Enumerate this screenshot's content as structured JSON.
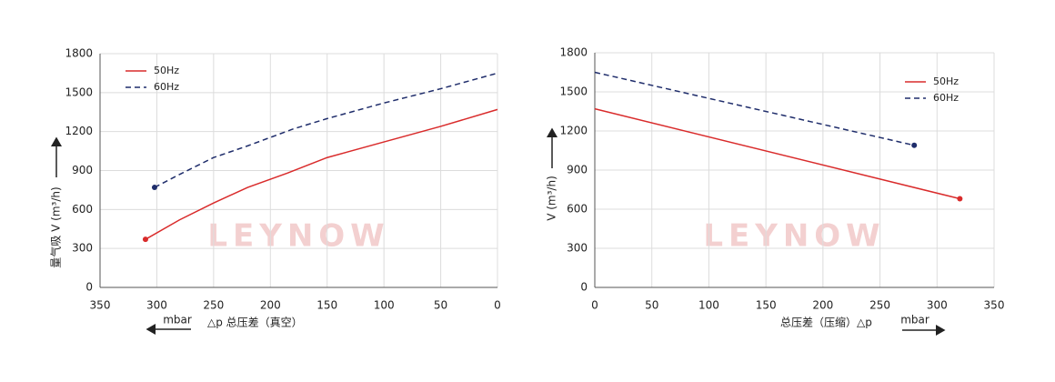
{
  "chart_data": [
    {
      "type": "line",
      "xlim": [
        350,
        0
      ],
      "xticks": [
        350,
        300,
        250,
        200,
        150,
        100,
        50,
        0
      ],
      "ylim": [
        0,
        1800
      ],
      "yticks": [
        0,
        300,
        600,
        900,
        1200,
        1500,
        1800
      ],
      "ylabel": "量气吸 V (m³/h)",
      "xlabel": "△p 总压差（真空）",
      "xunit": "mbar",
      "legend": "upper left",
      "grid": true,
      "watermark": "LEYNOW",
      "series": [
        {
          "name": "50Hz",
          "color": "#d92b2b",
          "linestyle": "solid",
          "marker": "start",
          "x": [
            310,
            280,
            250,
            220,
            185,
            150,
            100,
            50,
            0
          ],
          "values": [
            370,
            520,
            650,
            770,
            880,
            1000,
            1120,
            1240,
            1370
          ]
        },
        {
          "name": "60Hz",
          "color": "#1f2d6b",
          "linestyle": "dashed",
          "marker": "start",
          "x": [
            302,
            280,
            250,
            220,
            180,
            150,
            100,
            50,
            0
          ],
          "values": [
            770,
            870,
            1000,
            1090,
            1220,
            1300,
            1420,
            1530,
            1650
          ]
        }
      ]
    },
    {
      "type": "line",
      "xlim": [
        0,
        350
      ],
      "xticks": [
        0,
        50,
        100,
        150,
        200,
        250,
        300,
        350
      ],
      "ylim": [
        0,
        1800
      ],
      "yticks": [
        0,
        300,
        600,
        900,
        1200,
        1500,
        1800
      ],
      "ylabel": "V (m³/h)",
      "xlabel": "总压差（压缩）△p",
      "xunit": "mbar",
      "legend": "upper right",
      "grid": true,
      "watermark": "LEYNOW",
      "series": [
        {
          "name": "50Hz",
          "color": "#d92b2b",
          "linestyle": "solid",
          "marker": "end",
          "x": [
            0,
            320
          ],
          "values": [
            1370,
            680
          ]
        },
        {
          "name": "60Hz",
          "color": "#1f2d6b",
          "linestyle": "dashed",
          "marker": "end",
          "x": [
            0,
            280
          ],
          "values": [
            1650,
            1090
          ]
        }
      ]
    }
  ]
}
